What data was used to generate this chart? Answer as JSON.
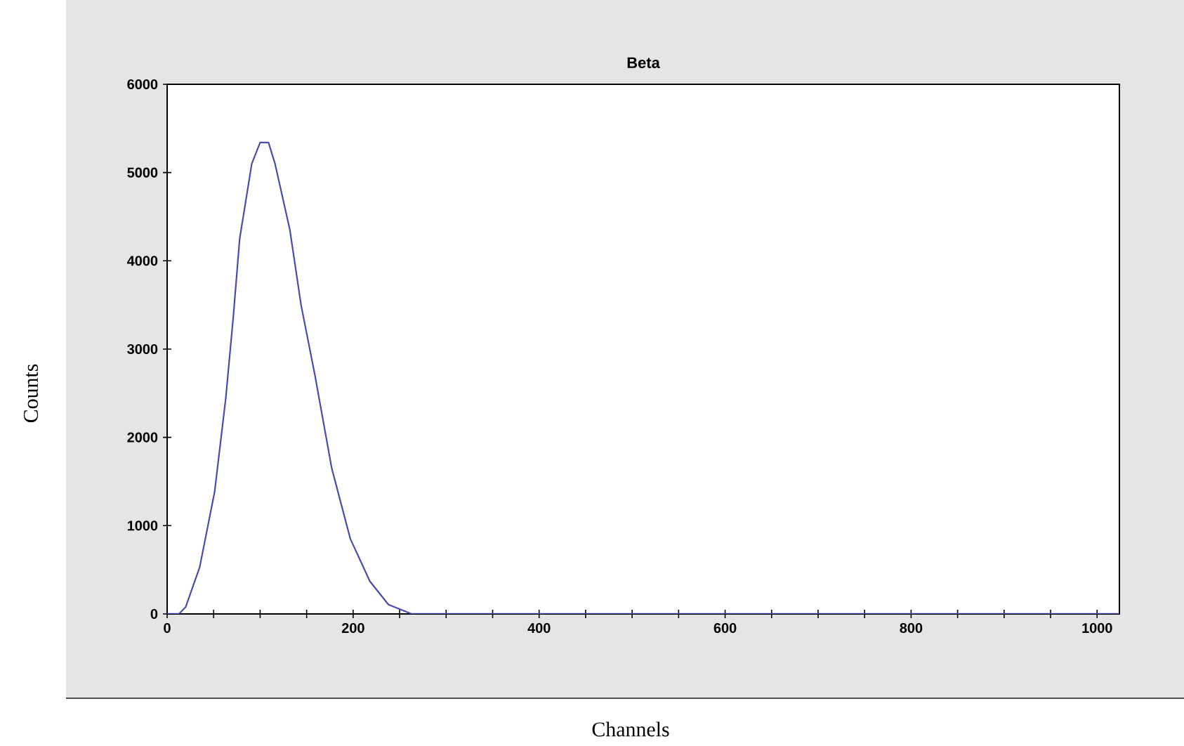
{
  "chart_data": {
    "type": "line",
    "title": "Beta",
    "xlabel": "Channels",
    "ylabel": "Counts",
    "x": [
      0,
      12.7,
      20,
      35,
      51,
      63,
      71,
      78,
      91,
      100,
      109,
      116,
      132,
      144,
      159,
      177,
      197,
      218,
      238,
      263,
      400,
      600,
      800,
      1024
    ],
    "series": [
      {
        "color": "#4a4ab0",
        "values": [
          0,
          0,
          80,
          530,
          1380,
          2440,
          3350,
          4250,
          5100,
          5340,
          5340,
          5100,
          4350,
          3500,
          2700,
          1650,
          850,
          370,
          105,
          0,
          0,
          0,
          0,
          0
        ]
      }
    ],
    "xlim": [
      0,
      1024
    ],
    "xticks": [
      0,
      {
        "value": 50,
        "label": null
      },
      {
        "value": 100,
        "label": null
      },
      {
        "value": 150,
        "label": null
      },
      200,
      {
        "value": 250,
        "label": null
      },
      {
        "value": 300,
        "label": null
      },
      {
        "value": 350,
        "label": null
      },
      400,
      {
        "value": 450,
        "label": null
      },
      {
        "value": 500,
        "label": null
      },
      {
        "value": 550,
        "label": null
      },
      600,
      {
        "value": 650,
        "label": null
      },
      {
        "value": 700,
        "label": null
      },
      {
        "value": 750,
        "label": null
      },
      800,
      {
        "value": 850,
        "label": null
      },
      {
        "value": 900,
        "label": null
      },
      {
        "value": 950,
        "label": null
      },
      1000
    ],
    "ylim": [
      0,
      6000
    ],
    "yticks": [
      0,
      1000,
      2000,
      3000,
      4000,
      5000,
      6000
    ],
    "marker": "none",
    "line_style": "solid"
  }
}
